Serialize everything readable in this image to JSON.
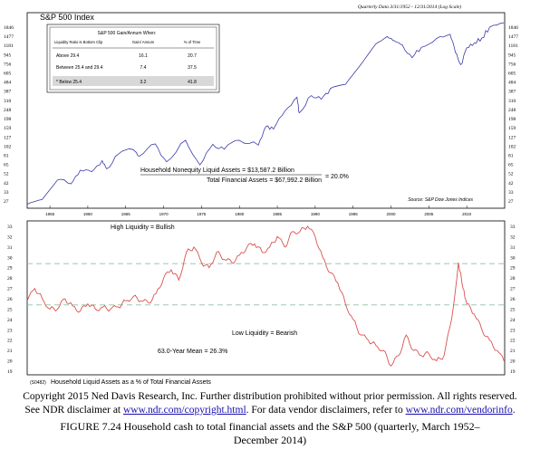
{
  "header_note": "Quarterly Data 3/31/1952 - 12/31/2014 (Log Scale)",
  "panel_top": {
    "title": "S&P 500 Index",
    "y_ticks": [
      "1846",
      "1477",
      "1181",
      "945",
      "756",
      "605",
      "484",
      "387",
      "310",
      "248",
      "198",
      "159",
      "127",
      "102",
      "81",
      "65",
      "52",
      "42",
      "33",
      "27"
    ],
    "x_ticks": [
      "1955",
      "1960",
      "1965",
      "1970",
      "1975",
      "1980",
      "1985",
      "1990",
      "1995",
      "2000",
      "2005",
      "2010"
    ],
    "source": "Source: S&P Dow Jones Indices",
    "formula": {
      "numerator": "Household Nonequity Liquid Assets = $13,587.2 Billion",
      "denominator": "Total Financial Assets = $67,992.2 Billion",
      "result": "= 20.0%"
    },
    "table": {
      "title": "S&P 500 Gain/Annum When:",
      "headers": [
        "Liquidity Ratio is Bottom Clip",
        "Gain/ Annum",
        "% of Time"
      ],
      "rows": [
        {
          "label": "Above 29.4",
          "gain": "16.1",
          "time": "20.7"
        },
        {
          "label": "Between 25.4 and 29.4",
          "gain": "7.4",
          "time": "37.5"
        },
        {
          "label": "* Below 25.4",
          "gain": "3.2",
          "time": "41.8"
        }
      ]
    }
  },
  "panel_bottom": {
    "y_ticks": [
      "33",
      "32",
      "31",
      "30",
      "29",
      "28",
      "27",
      "26",
      "25",
      "24",
      "23",
      "22",
      "21",
      "20",
      "19"
    ],
    "annotation_high": "High Liquidity = Bullish",
    "annotation_low": "Low Liquidity = Bearish",
    "annotation_mean": "63.0-Year Mean = 26.3%",
    "footer_code": "(S0482)",
    "footer_label": "Household Liquid Assets as a % of Total Financial Assets"
  },
  "caption": {
    "line1": "Copyright 2015 Ned Davis Research, Inc. Further distribution prohibited without prior permission. All rights reserved.",
    "line2_pre": "See NDR disclaimer at ",
    "line2_link1": "www.ndr.com/copyright.html",
    "line2_mid": ". For data vendor disclaimers, refer to ",
    "line2_link2": "www.ndr.com/vendorinfo",
    "line2_post": ".",
    "figure": "FIGURE 7.24 Household cash to total financial assets and the S&P 500 (quarterly, March 1952–",
    "figure2": "December 2014)"
  },
  "colors": {
    "sp500": "#3a3aa8",
    "liquidity": "#d9534f",
    "dashed": "#8fbfa8"
  },
  "chart_data": [
    {
      "type": "line",
      "title": "S&P 500 Index",
      "log_scale": true,
      "ylim": [
        27,
        1846
      ],
      "xlim": [
        1952,
        2015
      ],
      "series": [
        {
          "x": [
            1952,
            1954,
            1956,
            1957.8,
            1959,
            1960.5,
            1961.9,
            1962.5,
            1964,
            1966,
            1966.8,
            1968.9,
            1970.4,
            1972.9,
            1974.8,
            1976.5,
            1978,
            1980,
            1982.5,
            1983.5,
            1984.5,
            1986,
            1987.6,
            1987.9,
            1989.5,
            1990.8,
            1992,
            1994,
            1996,
            1998,
            1999.5,
            2000.5,
            2001.5,
            2002.8,
            2004,
            2006,
            2007.8,
            2008.5,
            2009.2,
            2010,
            2011,
            2012,
            2013,
            2014.9
          ],
          "y": [
            25,
            28,
            45,
            41,
            57,
            55,
            72,
            59,
            84,
            94,
            80,
            108,
            70,
            118,
            65,
            107,
            95,
            118,
            105,
            165,
            155,
            240,
            336,
            230,
            350,
            320,
            416,
            460,
            740,
            1230,
            1469,
            1320,
            1200,
            880,
            1130,
            1400,
            1550,
            1000,
            740,
            1120,
            1260,
            1420,
            1840,
            2058
          ]
        }
      ]
    },
    {
      "type": "line",
      "title": "Household Liquid Assets as a % of Total Financial Assets",
      "ylim": [
        19,
        33
      ],
      "xlim": [
        1952,
        2015
      ],
      "reference_lines": [
        29.4,
        25.4
      ],
      "mean": 26.3,
      "series": [
        {
          "x": [
            1952,
            1953,
            1954,
            1955,
            1956,
            1957,
            1958,
            1959,
            1960,
            1961,
            1962,
            1963,
            1964,
            1965,
            1966,
            1967,
            1968,
            1969,
            1970,
            1971,
            1972,
            1973,
            1974,
            1975,
            1976,
            1977,
            1978,
            1979,
            1980,
            1981,
            1982,
            1983,
            1984,
            1985,
            1986,
            1987,
            1988,
            1989,
            1990,
            1991,
            1992,
            1993,
            1994,
            1995,
            1996,
            1997,
            1998,
            1999,
            2000,
            2001,
            2002,
            2003,
            2004,
            2005,
            2006,
            2007,
            2008,
            2008.9,
            2009.5,
            2010,
            2011,
            2012,
            2013,
            2014,
            2014.9
          ],
          "y": [
            25.8,
            27.0,
            26.0,
            25.0,
            25.0,
            26.0,
            25.3,
            24.8,
            25.5,
            25.0,
            25.2,
            25.0,
            25.2,
            25.8,
            26.2,
            25.8,
            25.6,
            26.5,
            28.0,
            28.8,
            27.8,
            30.5,
            31.0,
            29.5,
            29.0,
            30.5,
            29.8,
            29.5,
            30.2,
            31.0,
            31.3,
            30.5,
            31.0,
            32.0,
            31.0,
            32.5,
            32.5,
            33.0,
            32.0,
            30.0,
            28.5,
            27.5,
            25.5,
            24.0,
            22.5,
            22.0,
            21.5,
            21.0,
            19.5,
            20.5,
            22.5,
            21.0,
            20.5,
            20.7,
            20.0,
            20.5,
            24.0,
            29.5,
            27.0,
            25.5,
            24.5,
            23.0,
            22.0,
            21.0,
            20.0
          ]
        }
      ]
    }
  ]
}
